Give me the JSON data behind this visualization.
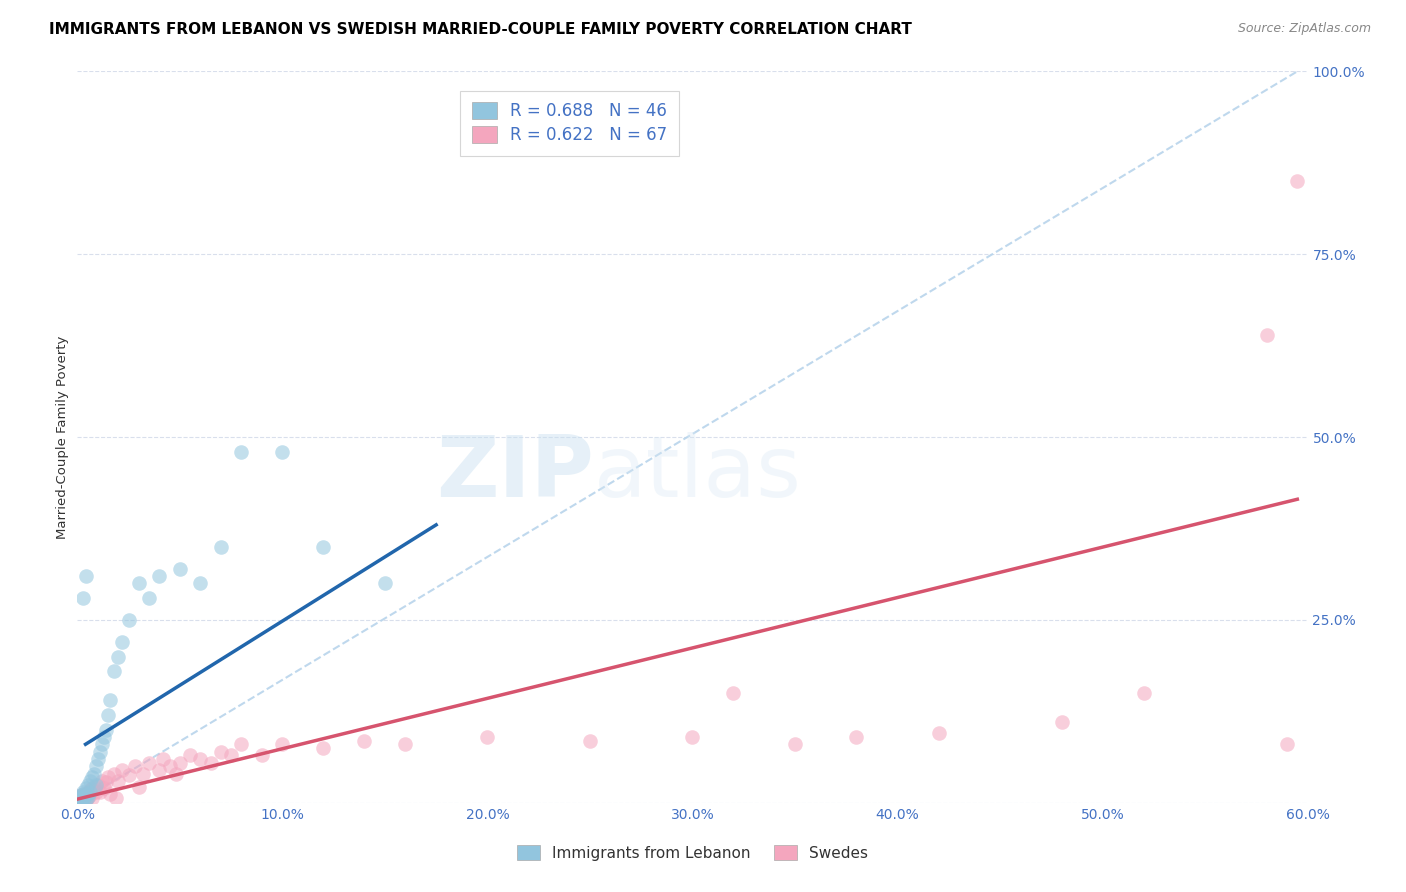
{
  "title": "IMMIGRANTS FROM LEBANON VS SWEDISH MARRIED-COUPLE FAMILY POVERTY CORRELATION CHART",
  "source": "Source: ZipAtlas.com",
  "ylabel": "Married-Couple Family Poverty",
  "legend_label_1": "Immigrants from Lebanon",
  "legend_label_2": "Swedes",
  "R1": 0.688,
  "N1": 46,
  "R2": 0.622,
  "N2": 67,
  "color_blue": "#92c5de",
  "color_pink": "#f4a6be",
  "color_blue_line": "#2166ac",
  "color_pink_line": "#d6546e",
  "color_dashed": "#b8d4eb",
  "axis_label_color": "#4472c4",
  "xlim": [
    0.0,
    0.6
  ],
  "ylim": [
    0.0,
    1.0
  ],
  "xticks": [
    0.0,
    0.1,
    0.2,
    0.3,
    0.4,
    0.5,
    0.6
  ],
  "yticks": [
    0.0,
    0.25,
    0.5,
    0.75,
    1.0
  ],
  "xtick_labels": [
    "0.0%",
    "10.0%",
    "20.0%",
    "30.0%",
    "40.0%",
    "50.0%",
    "60.0%"
  ],
  "ytick_labels": [
    "",
    "25.0%",
    "50.0%",
    "75.0%",
    "100.0%"
  ],
  "blue_scatter_x": [
    0.001,
    0.001,
    0.001,
    0.002,
    0.002,
    0.002,
    0.002,
    0.003,
    0.003,
    0.003,
    0.003,
    0.004,
    0.004,
    0.004,
    0.005,
    0.005,
    0.005,
    0.006,
    0.006,
    0.007,
    0.008,
    0.009,
    0.009,
    0.01,
    0.011,
    0.012,
    0.013,
    0.014,
    0.015,
    0.016,
    0.018,
    0.02,
    0.022,
    0.025,
    0.03,
    0.035,
    0.04,
    0.05,
    0.06,
    0.07,
    0.08,
    0.1,
    0.12,
    0.15,
    0.003,
    0.004
  ],
  "blue_scatter_y": [
    0.005,
    0.008,
    0.003,
    0.01,
    0.005,
    0.002,
    0.007,
    0.015,
    0.008,
    0.003,
    0.012,
    0.02,
    0.01,
    0.005,
    0.025,
    0.012,
    0.008,
    0.03,
    0.015,
    0.035,
    0.04,
    0.05,
    0.025,
    0.06,
    0.07,
    0.08,
    0.09,
    0.1,
    0.12,
    0.14,
    0.18,
    0.2,
    0.22,
    0.25,
    0.3,
    0.28,
    0.31,
    0.32,
    0.3,
    0.35,
    0.48,
    0.48,
    0.35,
    0.3,
    0.28,
    0.31
  ],
  "pink_scatter_x": [
    0.0005,
    0.001,
    0.001,
    0.001,
    0.0015,
    0.002,
    0.002,
    0.002,
    0.0025,
    0.003,
    0.003,
    0.003,
    0.004,
    0.004,
    0.004,
    0.005,
    0.005,
    0.006,
    0.006,
    0.007,
    0.007,
    0.008,
    0.009,
    0.01,
    0.011,
    0.012,
    0.013,
    0.014,
    0.015,
    0.016,
    0.018,
    0.019,
    0.02,
    0.022,
    0.025,
    0.028,
    0.03,
    0.032,
    0.035,
    0.04,
    0.042,
    0.045,
    0.048,
    0.05,
    0.055,
    0.06,
    0.065,
    0.07,
    0.075,
    0.08,
    0.09,
    0.1,
    0.12,
    0.14,
    0.16,
    0.2,
    0.25,
    0.3,
    0.35,
    0.38,
    0.32,
    0.42,
    0.48,
    0.52,
    0.58,
    0.59,
    0.595
  ],
  "pink_scatter_y": [
    0.003,
    0.008,
    0.005,
    0.003,
    0.008,
    0.01,
    0.005,
    0.003,
    0.008,
    0.01,
    0.007,
    0.003,
    0.012,
    0.007,
    0.003,
    0.015,
    0.008,
    0.018,
    0.01,
    0.02,
    0.007,
    0.022,
    0.015,
    0.025,
    0.015,
    0.03,
    0.02,
    0.028,
    0.035,
    0.012,
    0.04,
    0.007,
    0.03,
    0.045,
    0.038,
    0.05,
    0.022,
    0.04,
    0.055,
    0.045,
    0.06,
    0.05,
    0.04,
    0.055,
    0.065,
    0.06,
    0.055,
    0.07,
    0.065,
    0.08,
    0.065,
    0.08,
    0.075,
    0.085,
    0.08,
    0.09,
    0.085,
    0.09,
    0.08,
    0.09,
    0.15,
    0.095,
    0.11,
    0.15,
    0.64,
    0.08,
    0.85
  ],
  "blue_line_x": [
    0.004,
    0.175
  ],
  "blue_line_y": [
    0.08,
    0.38
  ],
  "pink_line_x": [
    0.0,
    0.595
  ],
  "pink_line_y": [
    0.005,
    0.415
  ],
  "dashed_line_x": [
    0.0,
    0.595
  ],
  "dashed_line_y": [
    0.0,
    1.0
  ],
  "watermark_zip": "ZIP",
  "watermark_atlas": "atlas",
  "title_fontsize": 11,
  "axis_tick_fontsize": 10,
  "legend_fontsize": 12
}
